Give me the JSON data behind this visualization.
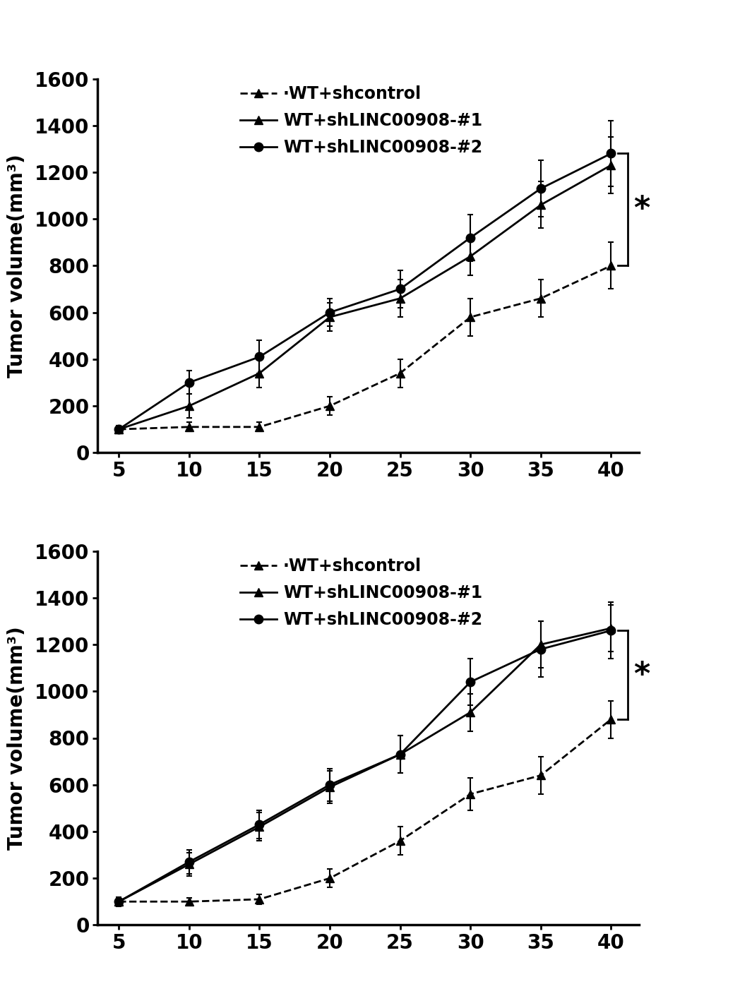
{
  "x": [
    5,
    10,
    15,
    20,
    25,
    30,
    35,
    40
  ],
  "chart1": {
    "shcontrol_y": [
      100,
      110,
      110,
      200,
      340,
      580,
      660,
      800
    ],
    "shcontrol_err": [
      15,
      20,
      20,
      40,
      60,
      80,
      80,
      100
    ],
    "shLINC1_y": [
      100,
      200,
      340,
      580,
      660,
      840,
      1060,
      1230
    ],
    "shLINC1_err": [
      15,
      50,
      60,
      60,
      80,
      80,
      100,
      120
    ],
    "shLINC2_y": [
      100,
      300,
      410,
      600,
      700,
      920,
      1130,
      1280
    ],
    "shLINC2_err": [
      15,
      50,
      70,
      60,
      80,
      100,
      120,
      140
    ]
  },
  "chart2": {
    "shcontrol_y": [
      100,
      100,
      110,
      200,
      360,
      560,
      640,
      880
    ],
    "shcontrol_err": [
      15,
      15,
      20,
      40,
      60,
      70,
      80,
      80
    ],
    "shLINC1_y": [
      100,
      260,
      420,
      590,
      730,
      910,
      1200,
      1270
    ],
    "shLINC1_err": [
      20,
      50,
      60,
      70,
      80,
      80,
      100,
      100
    ],
    "shLINC2_y": [
      100,
      270,
      430,
      600,
      730,
      1040,
      1180,
      1260
    ],
    "shLINC2_err": [
      20,
      50,
      60,
      70,
      80,
      100,
      120,
      120
    ]
  },
  "ylabel": "Tumor volume(mm³)",
  "legend_labels": [
    "·WT+shcontrol",
    "WT+shLINC00908-#1",
    "WT+shLINC00908-#2"
  ],
  "yticks1": [
    0,
    200,
    400,
    600,
    800,
    1000,
    1200,
    1400,
    1600
  ],
  "yticks2": [
    0,
    200,
    400,
    600,
    800,
    1000,
    1200,
    1400,
    1600
  ],
  "xticks": [
    5,
    10,
    15,
    20,
    25,
    30,
    35,
    40
  ],
  "significance_text": "*",
  "bg_color": "#ffffff",
  "line_color": "#000000"
}
